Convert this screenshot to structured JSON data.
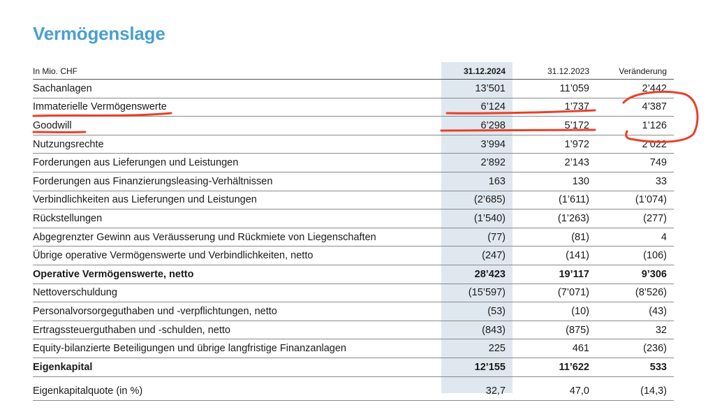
{
  "title": "Vermögenslage",
  "table": {
    "headers": {
      "label": "In Mio. CHF",
      "y2024": "31.12.2024",
      "y2023": "31.12.2023",
      "change": "Veränderung"
    },
    "rows": [
      {
        "label": "Sachanlagen",
        "y2024": "13’501",
        "y2023": "11’059",
        "change": "2’442",
        "bold": false
      },
      {
        "label": "Immaterielle Vermögenswerte",
        "y2024": "6’124",
        "y2023": "1’737",
        "change": "4’387",
        "bold": false
      },
      {
        "label": "Goodwill",
        "y2024": "6’298",
        "y2023": "5’172",
        "change": "1’126",
        "bold": false
      },
      {
        "label": "Nutzungsrechte",
        "y2024": "3’994",
        "y2023": "1’972",
        "change": "2’022",
        "bold": false
      },
      {
        "label": "Forderungen aus Lieferungen und Leistungen",
        "y2024": "2’892",
        "y2023": "2’143",
        "change": "749",
        "bold": false
      },
      {
        "label": "Forderungen aus Finanzierungsleasing-Verhältnissen",
        "y2024": "163",
        "y2023": "130",
        "change": "33",
        "bold": false
      },
      {
        "label": "Verbindlichkeiten aus Lieferungen und Leistungen",
        "y2024": "(2’685)",
        "y2023": "(1’611)",
        "change": "(1’074)",
        "bold": false
      },
      {
        "label": "Rückstellungen",
        "y2024": "(1’540)",
        "y2023": "(1’263)",
        "change": "(277)",
        "bold": false
      },
      {
        "label": "Abgegrenzter Gewinn aus Veräusserung und Rückmiete von Liegenschaften",
        "y2024": "(77)",
        "y2023": "(81)",
        "change": "4",
        "bold": false
      },
      {
        "label": "Übrige operative Vermögenswerte und Verbindlichkeiten, netto",
        "y2024": "(247)",
        "y2023": "(141)",
        "change": "(106)",
        "bold": false
      },
      {
        "label": "Operative Vermögenswerte, netto",
        "y2024": "28’423",
        "y2023": "19’117",
        "change": "9’306",
        "bold": true
      },
      {
        "label": "Nettoverschuldung",
        "y2024": "(15’597)",
        "y2023": "(7’071)",
        "change": "(8’526)",
        "bold": false
      },
      {
        "label": "Personalvorsorgeguthaben und -verpflichtungen, netto",
        "y2024": "(53)",
        "y2023": "(10)",
        "change": "(43)",
        "bold": false
      },
      {
        "label": "Ertragssteuerguthaben und -schulden, netto",
        "y2024": "(843)",
        "y2023": "(875)",
        "change": "32",
        "bold": false
      },
      {
        "label": "Equity-bilanzierte Beteiligungen und übrige langfristige Finanzanlagen",
        "y2024": "225",
        "y2023": "461",
        "change": "(236)",
        "bold": false
      },
      {
        "label": "Eigenkapital",
        "y2024": "12’155",
        "y2023": "11’622",
        "change": "533",
        "bold": true
      }
    ],
    "footer_row": {
      "label": "Eigenkapitalquote (in %)",
      "y2024": "32,7",
      "y2023": "47,0",
      "change": "(14,3)"
    }
  },
  "colors": {
    "title": "#4a9fd1",
    "highlight_column": "#dfe8ee",
    "annotation_red": "#e8402a"
  },
  "annotations": [
    "red-underline-immaterielle",
    "red-underline-goodwill",
    "red-circle-change-values"
  ]
}
